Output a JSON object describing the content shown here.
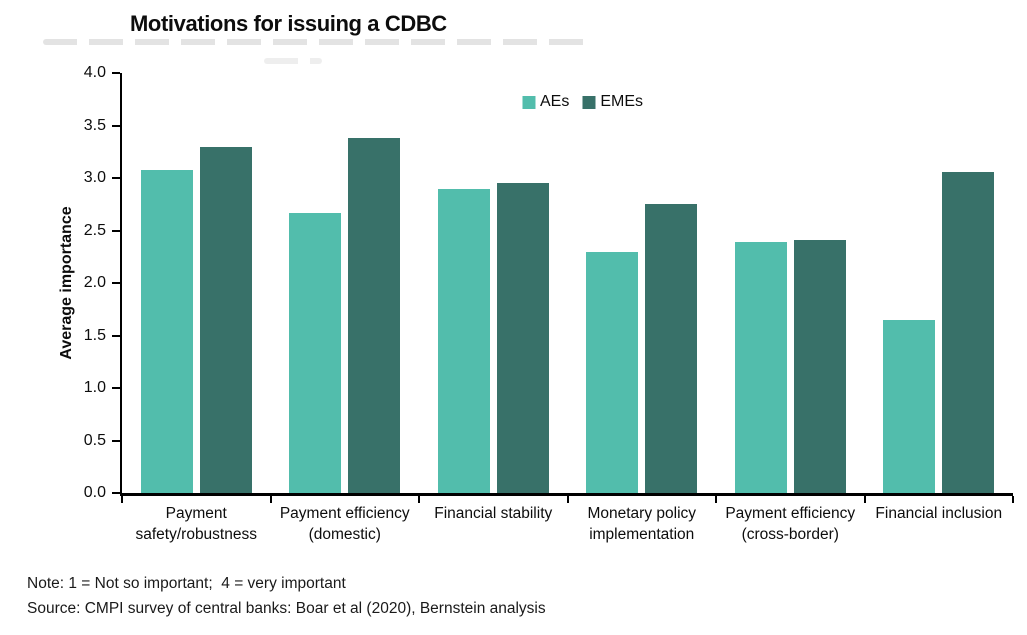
{
  "title": "Motivations for issuing a CDBC",
  "y_axis": {
    "label": "Average importance"
  },
  "notes": {
    "note": "Note: 1 = Not so important;  4 = very important",
    "source": "Source: CMPI survey of central banks: Boar et al (2020), Bernstein analysis"
  },
  "colors": {
    "aes": "#52BDAC",
    "emes": "#387169",
    "axis": "#000000"
  },
  "chart_data": {
    "type": "bar",
    "title": "Motivations for issuing a CDBC",
    "categories": [
      "Payment safety/robustness",
      "Payment efficiency (domestic)",
      "Financial stability",
      "Monetary policy implementation",
      "Payment efficiency (cross-border)",
      "Financial inclusion"
    ],
    "category_label_lines": [
      [
        "Payment",
        "safety/robustness"
      ],
      [
        "Payment efficiency",
        "(domestic)"
      ],
      [
        "Financial stability"
      ],
      [
        "Monetary policy",
        "implementation"
      ],
      [
        "Payment efficiency",
        "(cross-border)"
      ],
      [
        "Financial inclusion"
      ]
    ],
    "series": [
      {
        "name": "AEs",
        "color": "#52BDAC",
        "values": [
          3.08,
          2.67,
          2.9,
          2.3,
          2.39,
          1.65
        ]
      },
      {
        "name": "EMEs",
        "color": "#387169",
        "values": [
          3.3,
          3.38,
          2.95,
          2.75,
          2.41,
          3.06
        ]
      }
    ],
    "xlabel": "",
    "ylabel": "Average importance",
    "ylim": [
      0,
      4
    ],
    "ytick_step": 0.5,
    "ytick_decimals": 1,
    "grid": false,
    "legend_position": "top-center"
  }
}
